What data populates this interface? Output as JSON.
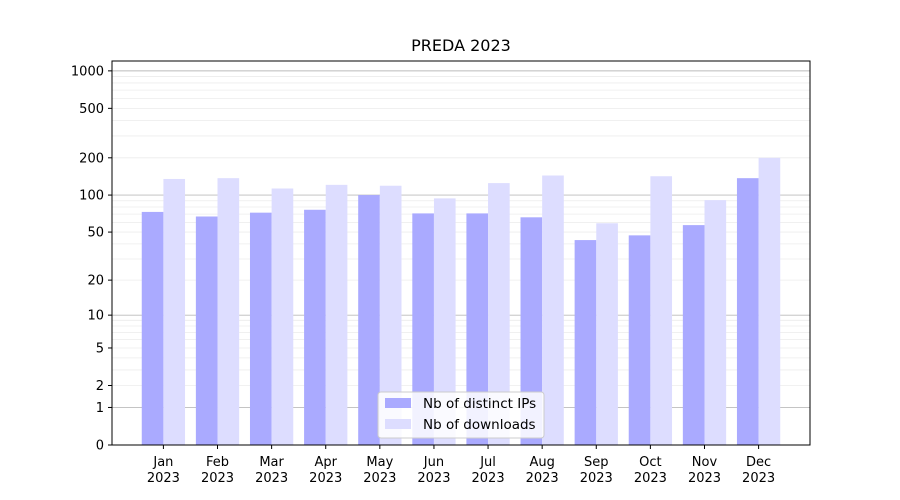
{
  "chart_data": {
    "type": "bar",
    "title": "PREDA 2023",
    "xlabel": "",
    "ylabel": "",
    "categories": [
      [
        "Jan",
        "2023"
      ],
      [
        "Feb",
        "2023"
      ],
      [
        "Mar",
        "2023"
      ],
      [
        "Apr",
        "2023"
      ],
      [
        "May",
        "2023"
      ],
      [
        "Jun",
        "2023"
      ],
      [
        "Jul",
        "2023"
      ],
      [
        "Aug",
        "2023"
      ],
      [
        "Sep",
        "2023"
      ],
      [
        "Oct",
        "2023"
      ],
      [
        "Nov",
        "2023"
      ],
      [
        "Dec",
        "2023"
      ]
    ],
    "series": [
      {
        "name": "Nb of distinct IPs",
        "color": "#aaaaff",
        "values": [
          73,
          67,
          72,
          76,
          100,
          71,
          71,
          66,
          43,
          47,
          57,
          137
        ]
      },
      {
        "name": "Nb of downloads",
        "color": "#ddddff",
        "values": [
          135,
          137,
          113,
          121,
          119,
          94,
          125,
          144,
          59,
          142,
          91,
          200
        ]
      }
    ],
    "yscale": "log(1+y)",
    "ylim": [
      0,
      1200
    ],
    "yticks": [
      0,
      1,
      2,
      5,
      10,
      20,
      50,
      100,
      200,
      500,
      1000
    ],
    "grid": true,
    "legend_position": "bottom-center"
  }
}
